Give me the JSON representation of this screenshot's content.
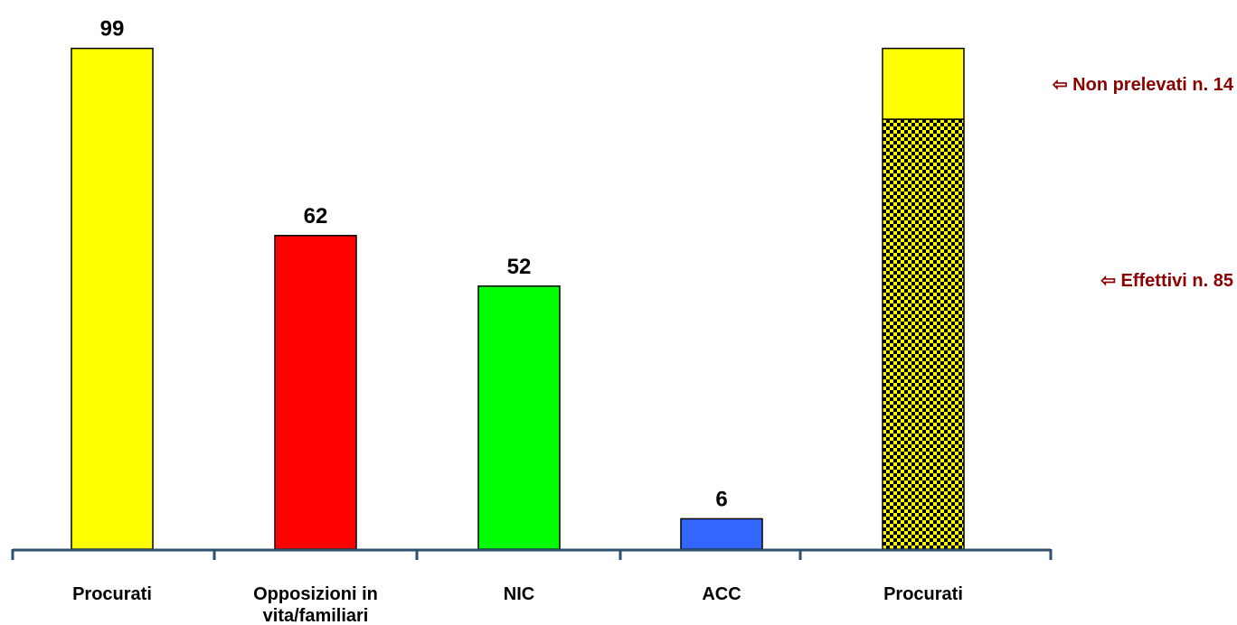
{
  "chart_data": {
    "type": "bar",
    "categories": [
      [
        "Procurati"
      ],
      [
        "Opposizioni in",
        "vita/familiari"
      ],
      [
        "NIC"
      ],
      [
        "ACC"
      ]
    ],
    "values": [
      99,
      62,
      52,
      6
    ],
    "colors": [
      "#ffff00",
      "#ff0000",
      "#00ff00",
      "#3366ff"
    ],
    "data_labels": [
      "99",
      "62",
      "52",
      "6"
    ],
    "ylim": [
      0,
      100
    ],
    "grid": false,
    "stacked_bar": {
      "category": "Procurati",
      "segments": [
        {
          "label": "Effettivi n. 85",
          "value": 85,
          "color": "#ffff00",
          "pattern": "checkered"
        },
        {
          "label": "Non prelevati n. 14",
          "value": 14,
          "color": "#ffff00",
          "pattern": "solid"
        }
      ]
    },
    "annotation_arrow": "⇦",
    "axis_color": "#2f4f6f"
  }
}
